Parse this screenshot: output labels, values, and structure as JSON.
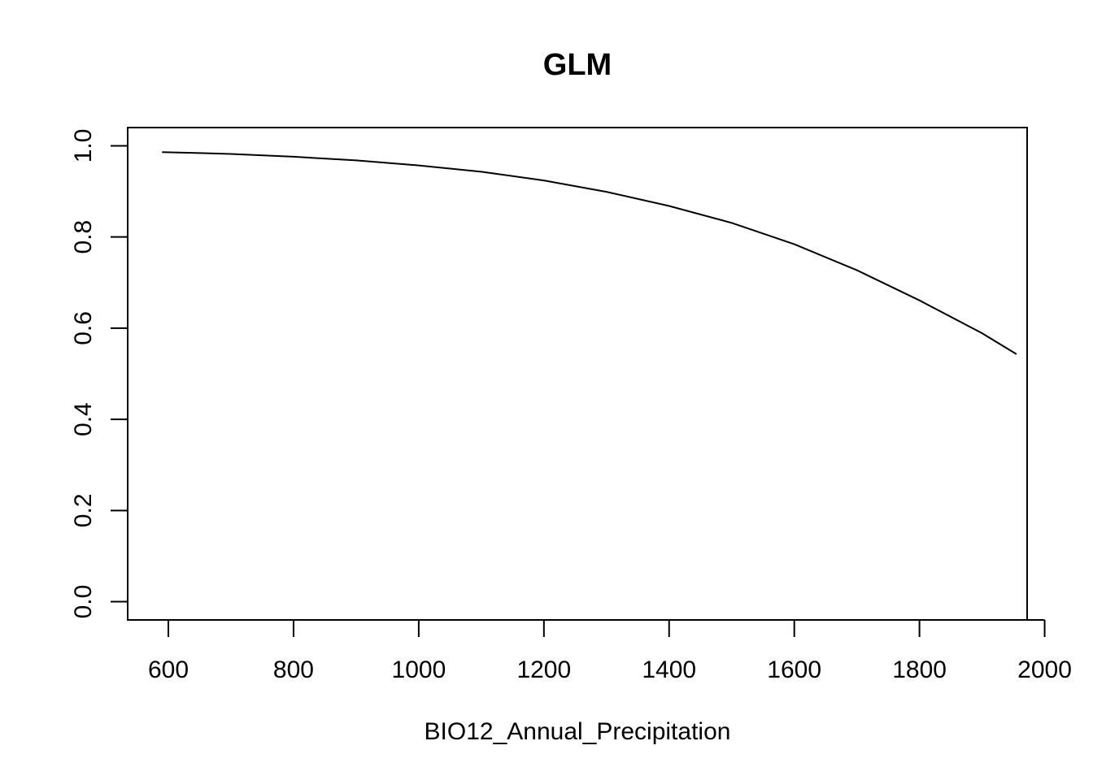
{
  "chart_data": {
    "type": "line",
    "title": "GLM",
    "xlabel": "BIO12_Annual_Precipitation",
    "ylabel": "",
    "xlim": [
      535,
      1972
    ],
    "ylim": [
      -0.04,
      1.04
    ],
    "x_ticks": [
      600,
      800,
      1000,
      1200,
      1400,
      1600,
      1800,
      2000
    ],
    "x_tick_labels": [
      "600",
      "800",
      "1000",
      "1200",
      "1400",
      "1600",
      "1800",
      "2000"
    ],
    "y_ticks": [
      0.0,
      0.2,
      0.4,
      0.6,
      0.8,
      1.0
    ],
    "y_tick_labels": [
      "0.0",
      "0.2",
      "0.4",
      "0.6",
      "0.8",
      "1.0"
    ],
    "grid": false,
    "legend": "none",
    "series": [
      {
        "color": "#000000",
        "x": [
          590,
          650,
          700,
          800,
          900,
          1000,
          1100,
          1200,
          1300,
          1400,
          1500,
          1600,
          1700,
          1800,
          1900,
          1955
        ],
        "y": [
          0.986,
          0.984,
          0.982,
          0.976,
          0.968,
          0.957,
          0.943,
          0.924,
          0.899,
          0.868,
          0.831,
          0.784,
          0.727,
          0.661,
          0.589,
          0.543
        ]
      }
    ]
  }
}
